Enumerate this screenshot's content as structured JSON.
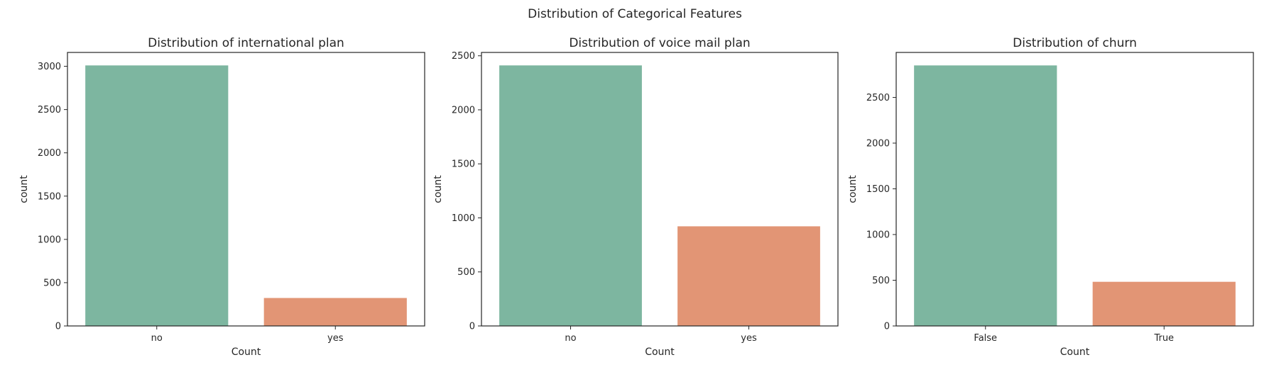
{
  "figure": {
    "suptitle": "Distribution of Categorical Features"
  },
  "colors": {
    "bar_first": "#7db6a0",
    "bar_second": "#e29575",
    "axes_edge": "#262626",
    "text": "#262626"
  },
  "chart_data": [
    {
      "type": "bar",
      "title": "Distribution of international plan",
      "xlabel": "Count",
      "ylabel": "count",
      "categories": [
        "no",
        "yes"
      ],
      "values": [
        3010,
        323
      ],
      "ylim": [
        0,
        3160
      ],
      "yticks": [
        0,
        500,
        1000,
        1500,
        2000,
        2500,
        3000
      ],
      "grid": false
    },
    {
      "type": "bar",
      "title": "Distribution of voice mail plan",
      "xlabel": "Count",
      "ylabel": "count",
      "categories": [
        "no",
        "yes"
      ],
      "values": [
        2411,
        922
      ],
      "ylim": [
        0,
        2531
      ],
      "yticks": [
        0,
        500,
        1000,
        1500,
        2000,
        2500
      ],
      "grid": false
    },
    {
      "type": "bar",
      "title": "Distribution of churn",
      "xlabel": "Count",
      "ylabel": "count",
      "categories": [
        "False",
        "True"
      ],
      "values": [
        2850,
        483
      ],
      "ylim": [
        0,
        2992
      ],
      "yticks": [
        0,
        500,
        1000,
        1500,
        2000,
        2500
      ],
      "grid": false
    }
  ]
}
